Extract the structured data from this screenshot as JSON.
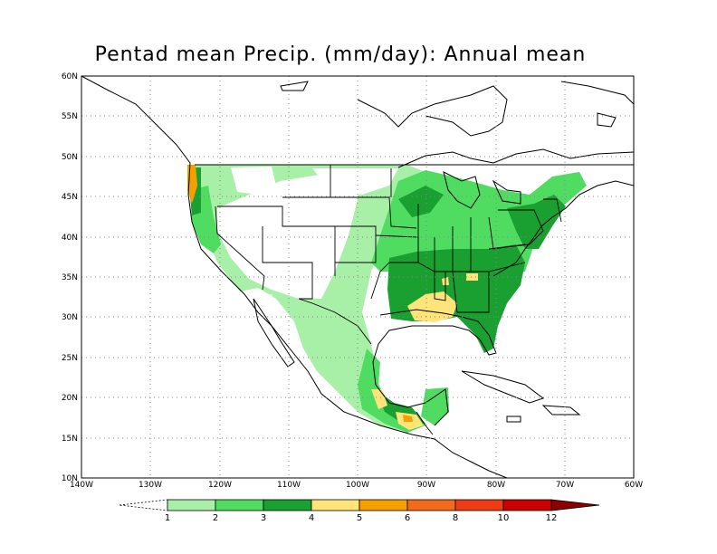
{
  "title": "Pentad mean Precip. (mm/day): Annual mean",
  "axes": {
    "lat_labels": [
      "10N",
      "15N",
      "20N",
      "25N",
      "30N",
      "35N",
      "40N",
      "45N",
      "50N",
      "55N",
      "60N"
    ],
    "lon_labels": [
      "140W",
      "130W",
      "120W",
      "110W",
      "100W",
      "90W",
      "80W",
      "70W",
      "60W"
    ],
    "lat_range": [
      10,
      60
    ],
    "lon_range": [
      -140,
      -60
    ],
    "grid": "dotted"
  },
  "colorbar": {
    "levels": [
      "1",
      "2",
      "3",
      "4",
      "5",
      "6",
      "8",
      "10",
      "12"
    ],
    "colors": [
      "#ffffff",
      "#a8f0a8",
      "#50dc60",
      "#19a030",
      "#ffe47a",
      "#f5a000",
      "#f26a1a",
      "#f03c14",
      "#c80000",
      "#8c0000"
    ]
  },
  "regions": {
    "light_green": "1-2 mm/day: interior West, Great Plains, northern Mexico",
    "green": "2-3 mm/day: Midwest, Northeast, coastal Mexico",
    "dark_green": "3-4 mm/day: Southeast, Appalachians, Pacific Northwest coast",
    "yellow_orange": "4-6 mm/day: Gulf Coast, Olympic peninsula, southern Mexico"
  }
}
